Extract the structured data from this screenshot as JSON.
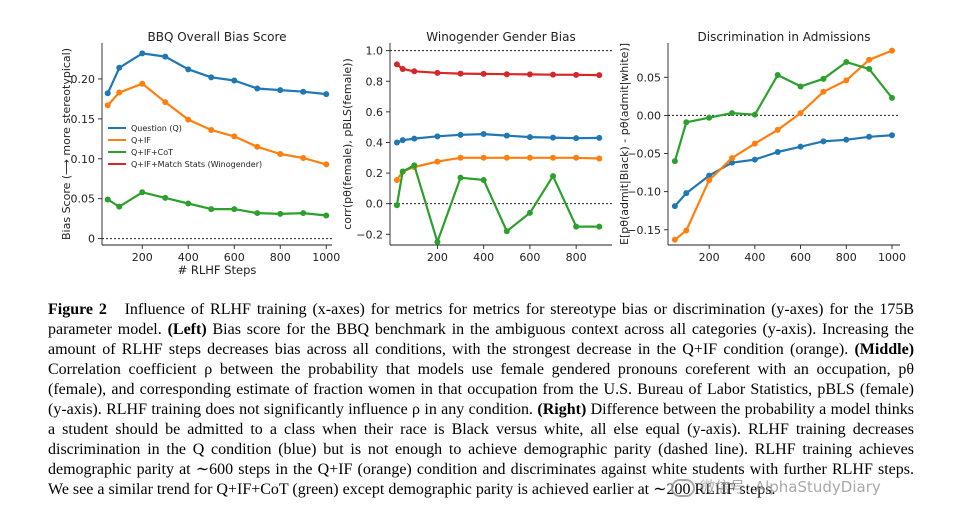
{
  "chart_data": [
    {
      "type": "line",
      "title": "BBQ Overall Bias Score",
      "xlabel": "# RLHF Steps",
      "ylabel": "Bias Score (⟶ more stereotypical)",
      "xlim": [
        25,
        1025
      ],
      "ylim": [
        -0.008,
        0.245
      ],
      "xticks": [
        200,
        400,
        600,
        800,
        1000
      ],
      "yticks": [
        0,
        0.05,
        0.1,
        0.15,
        0.2
      ],
      "ytick_labels": [
        "0",
        "0.05",
        "0.10",
        "0.15",
        "0.20"
      ],
      "hlines": [
        0
      ],
      "legend": "center-right",
      "series": [
        {
          "name": "Question (Q)",
          "color": "#1f77b4",
          "x": [
            50,
            100,
            200,
            300,
            400,
            500,
            600,
            700,
            800,
            900,
            1000
          ],
          "y": [
            0.182,
            0.214,
            0.232,
            0.228,
            0.212,
            0.202,
            0.198,
            0.188,
            0.186,
            0.184,
            0.181
          ]
        },
        {
          "name": "Q+IF",
          "color": "#ff7f0e",
          "x": [
            50,
            100,
            200,
            300,
            400,
            500,
            600,
            700,
            800,
            900,
            1000
          ],
          "y": [
            0.167,
            0.183,
            0.194,
            0.171,
            0.149,
            0.136,
            0.128,
            0.115,
            0.106,
            0.101,
            0.093
          ]
        },
        {
          "name": "Q+IF+CoT",
          "color": "#2ca02c",
          "x": [
            50,
            100,
            200,
            300,
            400,
            500,
            600,
            700,
            800,
            900,
            1000
          ],
          "y": [
            0.049,
            0.04,
            0.058,
            0.051,
            0.044,
            0.037,
            0.037,
            0.032,
            0.031,
            0.032,
            0.029
          ]
        },
        {
          "name": "Q+IF+Match Stats (Winogender)",
          "color": "#d62728",
          "x": [],
          "y": []
        }
      ]
    },
    {
      "type": "line",
      "title": "Winogender Gender Bias",
      "xlabel": "",
      "ylabel": "corr(pθ(female), pBLS(female))",
      "xlim": [
        -5,
        955
      ],
      "ylim": [
        -0.27,
        1.05
      ],
      "xticks": [
        200,
        400,
        600,
        800
      ],
      "yticks": [
        -0.2,
        0.0,
        0.2,
        0.4,
        0.6,
        0.8,
        1.0
      ],
      "ytick_labels": [
        "−0.2",
        "0.0",
        "0.2",
        "0.4",
        "0.6",
        "0.8",
        "1.0"
      ],
      "hlines": [
        0,
        1
      ],
      "series": [
        {
          "name": "Q+IF+Match Stats (Winogender)",
          "color": "#d62728",
          "x": [
            25,
            50,
            100,
            200,
            300,
            400,
            500,
            600,
            700,
            800,
            900
          ],
          "y": [
            0.91,
            0.88,
            0.865,
            0.855,
            0.85,
            0.848,
            0.846,
            0.845,
            0.843,
            0.842,
            0.84
          ]
        },
        {
          "name": "Question (Q)",
          "color": "#1f77b4",
          "x": [
            25,
            50,
            100,
            200,
            300,
            400,
            500,
            600,
            700,
            800,
            900
          ],
          "y": [
            0.4,
            0.415,
            0.425,
            0.44,
            0.45,
            0.455,
            0.445,
            0.435,
            0.432,
            0.428,
            0.43
          ]
        },
        {
          "name": "Q+IF",
          "color": "#ff7f0e",
          "x": [
            25,
            50,
            100,
            200,
            300,
            400,
            500,
            600,
            700,
            800,
            900
          ],
          "y": [
            0.155,
            0.21,
            0.24,
            0.275,
            0.3,
            0.3,
            0.3,
            0.3,
            0.3,
            0.3,
            0.295
          ]
        },
        {
          "name": "Q+IF+CoT",
          "color": "#2ca02c",
          "x": [
            25,
            50,
            100,
            200,
            300,
            400,
            500,
            600,
            700,
            800,
            900
          ],
          "y": [
            -0.01,
            0.21,
            0.25,
            -0.25,
            0.17,
            0.155,
            -0.18,
            -0.06,
            0.18,
            -0.15,
            -0.15
          ]
        }
      ]
    },
    {
      "type": "line",
      "title": "Discrimination in Admissions",
      "xlabel": "",
      "ylabel": "E[pθ(admit|Black) - pθ(admit|white)]",
      "xlim": [
        20,
        1035
      ],
      "ylim": [
        -0.17,
        0.095
      ],
      "xticks": [
        200,
        400,
        600,
        800,
        1000
      ],
      "yticks": [
        -0.15,
        -0.1,
        -0.05,
        0.0,
        0.05
      ],
      "ytick_labels": [
        "−0.15",
        "−0.10",
        "−0.05",
        "0.00",
        "0.05"
      ],
      "hlines": [
        0
      ],
      "series": [
        {
          "name": "Question (Q)",
          "color": "#1f77b4",
          "x": [
            50,
            100,
            200,
            300,
            400,
            500,
            600,
            700,
            800,
            900,
            1000
          ],
          "y": [
            -0.119,
            -0.102,
            -0.079,
            -0.062,
            -0.058,
            -0.048,
            -0.041,
            -0.034,
            -0.032,
            -0.028,
            -0.026
          ]
        },
        {
          "name": "Q+IF",
          "color": "#ff7f0e",
          "x": [
            50,
            100,
            200,
            300,
            400,
            500,
            600,
            700,
            800,
            900,
            1000
          ],
          "y": [
            -0.163,
            -0.151,
            -0.085,
            -0.056,
            -0.037,
            -0.019,
            0.003,
            0.031,
            0.046,
            0.073,
            0.085
          ]
        },
        {
          "name": "Q+IF+CoT",
          "color": "#2ca02c",
          "x": [
            50,
            100,
            200,
            300,
            400,
            500,
            600,
            700,
            800,
            900,
            1000
          ],
          "y": [
            -0.06,
            -0.009,
            -0.003,
            0.003,
            0.001,
            0.053,
            0.038,
            0.048,
            0.07,
            0.061,
            0.023
          ]
        }
      ]
    }
  ],
  "caption": {
    "figure_label": "Figure 2",
    "intro": "Influence of RLHF training (x-axes) for metrics for metrics for stereotype bias or discrimination (y-axes) for the 175B parameter model.",
    "left_label": "(Left)",
    "left_text": "Bias score for the BBQ benchmark in the ambiguous context across all categories (y-axis). Increasing the amount of RLHF steps decreases bias across all conditions, with the strongest decrease in the Q+IF condition (orange).",
    "middle_label": "(Middle)",
    "middle_text": "Correlation coefficient ρ between the probability that models use female gendered pronouns coreferent with an occupation, pθ (female), and corresponding estimate of fraction women in that occupation from the U.S. Bureau of Labor Statistics, pBLS (female) (y-axis). RLHF training does not significantly influence ρ in any condition.",
    "right_label": "(Right)",
    "right_text": "Difference between the probability a model thinks a student should be admitted to a class when their race is Black versus white, all else equal (y-axis). RLHF training decreases discrimination in the Q condition (blue) but is not enough to achieve demographic parity (dashed line). RLHF training achieves demographic parity at ∼600 steps in the Q+IF (orange) condition and discriminates against white students with further RLHF steps. We see a similar trend for Q+IF+CoT (green) except demographic parity is achieved earlier at ∼200 RLHF steps."
  },
  "watermark": {
    "text": "微信号: AlphaStudyDiary"
  }
}
